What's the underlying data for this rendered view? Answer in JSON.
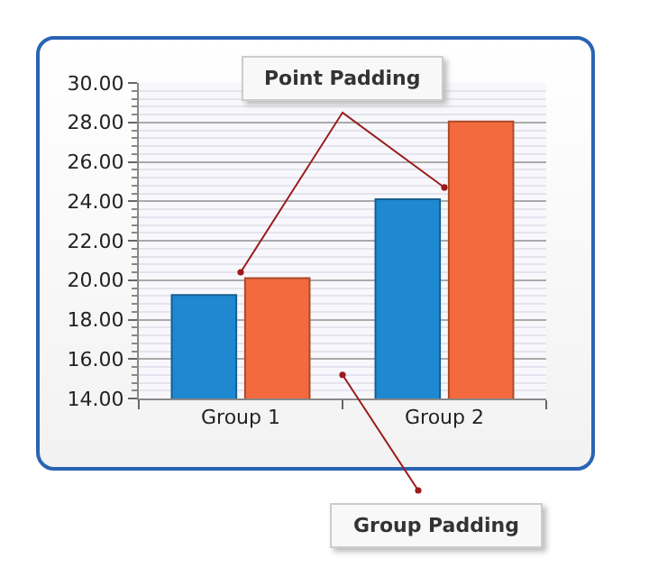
{
  "chart_data": {
    "type": "bar",
    "categories": [
      "Group 1",
      "Group 2"
    ],
    "series": [
      {
        "color": "#1e88d0",
        "values": [
          19.25,
          24.1
        ]
      },
      {
        "color": "#f26a3d",
        "values": [
          20.1,
          28.05
        ]
      }
    ],
    "ylim": [
      14,
      30
    ],
    "yticks": [
      {
        "value": 14,
        "label": "14.00"
      },
      {
        "value": 16,
        "label": "16.00"
      },
      {
        "value": 18,
        "label": "18.00"
      },
      {
        "value": 20,
        "label": "20.00"
      },
      {
        "value": 22,
        "label": "22.00"
      },
      {
        "value": 24,
        "label": "24.00"
      },
      {
        "value": 26,
        "label": "26.00"
      },
      {
        "value": 28,
        "label": "28.00"
      },
      {
        "value": 30,
        "label": "30.00"
      }
    ],
    "grid": "y",
    "legend": false,
    "annotations": [
      "Point Padding",
      "Group Padding"
    ]
  }
}
